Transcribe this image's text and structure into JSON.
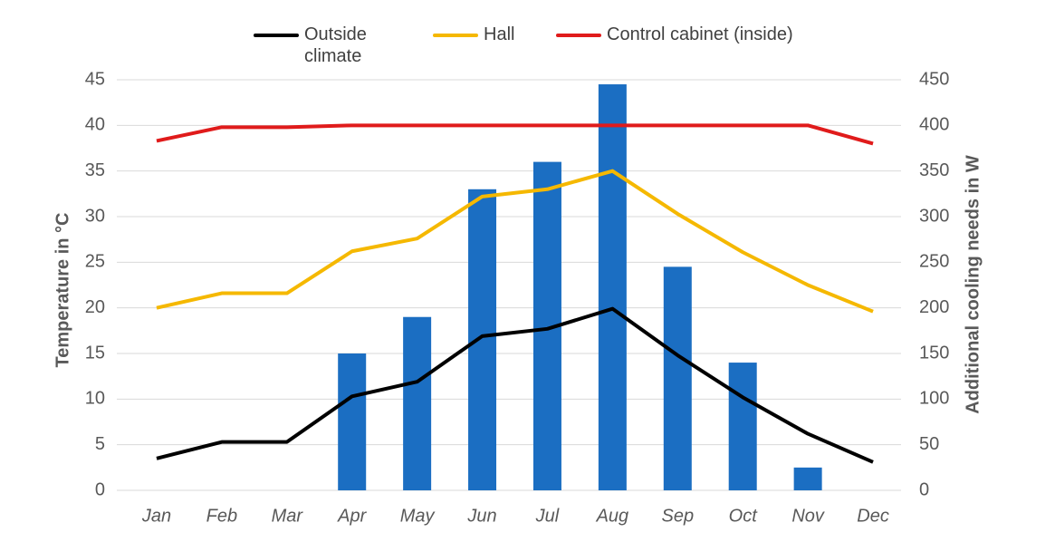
{
  "chart_data": {
    "type": "combo",
    "categories": [
      "Jan",
      "Feb",
      "Mar",
      "Apr",
      "May",
      "Jun",
      "Jul",
      "Aug",
      "Sep",
      "Oct",
      "Nov",
      "Dec"
    ],
    "y_label": "Temperature in °C",
    "y2_label": "Additional cooling needs in W",
    "ylim": [
      0,
      45
    ],
    "yticks": [
      0,
      5,
      10,
      15,
      20,
      25,
      30,
      35,
      40,
      45
    ],
    "y2lim": [
      0,
      450
    ],
    "y2ticks": [
      0,
      50,
      100,
      150,
      200,
      250,
      300,
      350,
      400,
      450
    ],
    "grid": true,
    "legend": "top",
    "series": [
      {
        "type": "bar",
        "axis": "y2",
        "color": "#1b6ec2",
        "values": [
          0,
          0,
          0,
          150,
          190,
          330,
          360,
          445,
          245,
          140,
          25,
          0
        ]
      },
      {
        "type": "line",
        "name": "Outside climate",
        "color": "#000000",
        "values": [
          3.5,
          5.3,
          5.3,
          10.3,
          11.9,
          16.9,
          17.7,
          19.9,
          14.8,
          10.2,
          6.2,
          3.1
        ]
      },
      {
        "type": "line",
        "name": "Hall",
        "color": "#f5b800",
        "values": [
          20,
          21.6,
          21.6,
          26.2,
          27.6,
          32.2,
          33,
          35,
          30.3,
          26.1,
          22.5,
          19.6
        ]
      },
      {
        "type": "line",
        "name": "Control cabinet (inside)",
        "color": "#e01b1b",
        "values": [
          38.3,
          39.8,
          39.8,
          40,
          40,
          40,
          40,
          40,
          40,
          40,
          40,
          38
        ]
      }
    ]
  }
}
